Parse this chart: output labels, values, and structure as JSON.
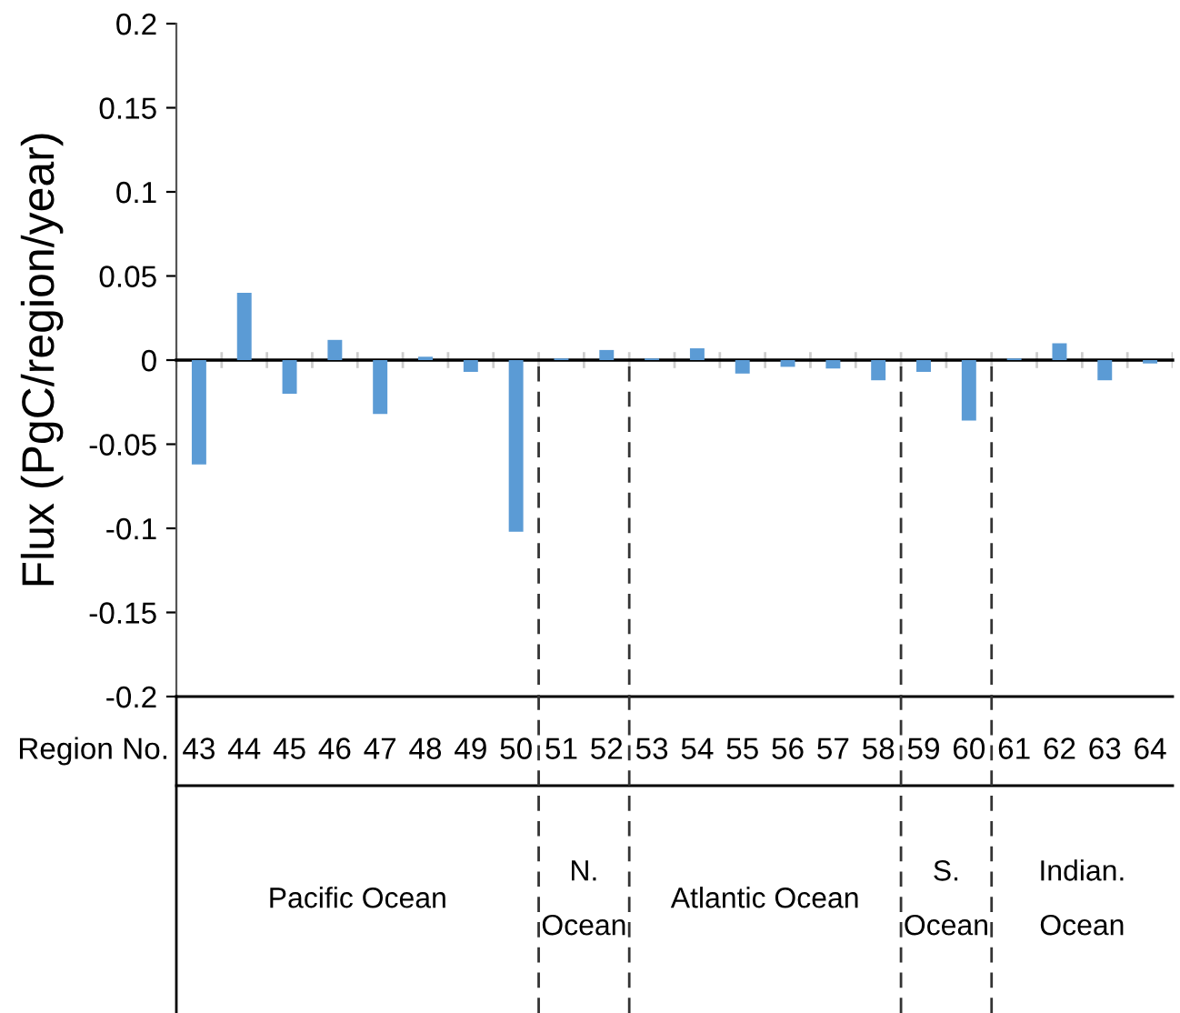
{
  "chart_data": {
    "type": "bar",
    "ylabel": "Flux (PgC/region/year)",
    "xlabel": "Region No.",
    "categories": [
      "43",
      "44",
      "45",
      "46",
      "47",
      "48",
      "49",
      "50",
      "51",
      "52",
      "53",
      "54",
      "55",
      "56",
      "57",
      "58",
      "59",
      "60",
      "61",
      "62",
      "63",
      "64"
    ],
    "values": [
      -0.062,
      0.04,
      -0.02,
      0.012,
      -0.032,
      0.002,
      -0.007,
      -0.102,
      0.001,
      0.006,
      0.001,
      0.007,
      -0.008,
      -0.004,
      -0.005,
      -0.012,
      -0.007,
      -0.036,
      0.001,
      0.01,
      -0.012,
      -0.002
    ],
    "color": "#5b9bd5",
    "ylim": [
      -0.2,
      0.2
    ],
    "yticks": [
      -0.2,
      -0.15,
      -0.1,
      -0.05,
      0,
      0.05,
      0.1,
      0.15,
      0.2
    ],
    "annotations": [
      "Pacific Ocean",
      "N.\nOcean",
      "Atlantic Ocean",
      "S.\nOcean",
      "Indian.\nOcean"
    ]
  }
}
